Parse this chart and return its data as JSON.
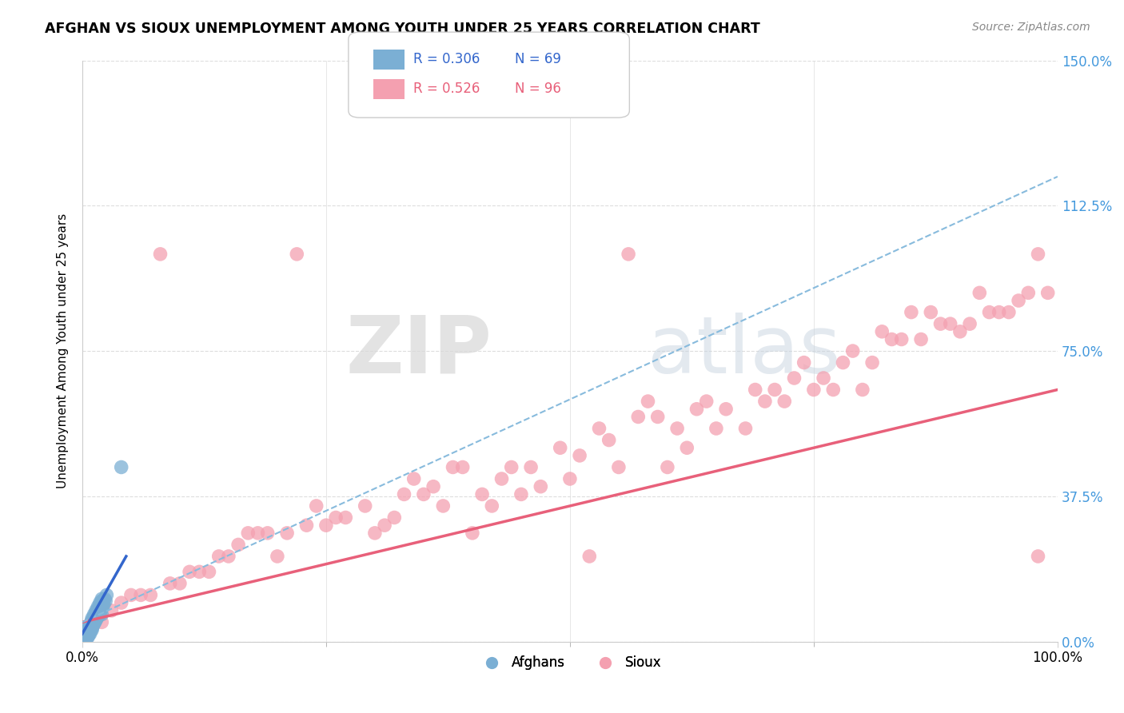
{
  "title": "AFGHAN VS SIOUX UNEMPLOYMENT AMONG YOUTH UNDER 25 YEARS CORRELATION CHART",
  "source": "Source: ZipAtlas.com",
  "ylabel": "Unemployment Among Youth under 25 years",
  "ytick_values": [
    0.0,
    37.5,
    75.0,
    112.5,
    150.0
  ],
  "xlim": [
    0,
    100
  ],
  "ylim": [
    0,
    150
  ],
  "afghan_color": "#7BAFD4",
  "sioux_color": "#F4A0B0",
  "afghan_line_color": "#3366CC",
  "sioux_line_color": "#E8607A",
  "dashed_line_color": "#88BBDD",
  "watermark_zip": "ZIP",
  "watermark_atlas": "atlas",
  "afghans_x": [
    0.2,
    0.3,
    0.4,
    0.5,
    0.6,
    0.7,
    0.8,
    0.9,
    1.0,
    1.1,
    1.2,
    1.3,
    1.4,
    1.5,
    1.6,
    1.7,
    1.8,
    1.9,
    2.0,
    2.1,
    2.2,
    2.3,
    2.4,
    2.5,
    0.2,
    0.3,
    0.4,
    0.5,
    0.6,
    0.7,
    0.8,
    0.9,
    1.0,
    1.1,
    1.2,
    1.3,
    1.4,
    1.5,
    1.6,
    1.7,
    1.8,
    1.9,
    2.0,
    2.1,
    0.3,
    0.4,
    0.5,
    0.6,
    0.7,
    0.8,
    0.9,
    1.0,
    1.1,
    1.2,
    1.3,
    1.4,
    1.5,
    1.6,
    1.7,
    1.8,
    1.9,
    2.0,
    0.2,
    0.4,
    0.6,
    0.8,
    1.0,
    4.0,
    2.0
  ],
  "afghans_y": [
    1.0,
    2.0,
    1.5,
    3.0,
    2.5,
    2.0,
    3.5,
    4.0,
    3.0,
    5.0,
    4.5,
    6.0,
    5.5,
    7.0,
    6.5,
    8.0,
    7.0,
    9.0,
    8.5,
    10.0,
    9.5,
    11.0,
    10.5,
    12.0,
    0.5,
    1.5,
    2.5,
    1.0,
    3.5,
    2.0,
    4.5,
    3.0,
    5.5,
    4.0,
    6.5,
    5.0,
    7.5,
    6.0,
    8.5,
    7.0,
    9.5,
    8.0,
    10.5,
    9.0,
    1.0,
    2.0,
    3.0,
    1.5,
    2.5,
    4.0,
    5.0,
    6.0,
    4.5,
    7.0,
    5.5,
    8.0,
    6.5,
    9.0,
    7.5,
    10.0,
    8.5,
    11.0,
    0.3,
    0.8,
    1.2,
    2.0,
    3.5,
    45.0,
    7.0
  ],
  "sioux_x": [
    3.0,
    5.0,
    8.0,
    10.0,
    12.0,
    15.0,
    18.0,
    20.0,
    22.0,
    25.0,
    27.0,
    30.0,
    32.0,
    35.0,
    37.0,
    40.0,
    42.0,
    45.0,
    47.0,
    50.0,
    52.0,
    55.0,
    58.0,
    60.0,
    62.0,
    65.0,
    68.0,
    70.0,
    72.0,
    75.0,
    77.0,
    80.0,
    82.0,
    85.0,
    87.0,
    90.0,
    92.0,
    95.0,
    97.0,
    98.0,
    2.0,
    6.0,
    11.0,
    16.0,
    21.0,
    26.0,
    31.0,
    36.0,
    41.0,
    46.0,
    51.0,
    56.0,
    61.0,
    66.0,
    71.0,
    76.0,
    81.0,
    86.0,
    91.0,
    96.0,
    4.0,
    9.0,
    14.0,
    19.0,
    24.0,
    29.0,
    34.0,
    39.0,
    44.0,
    49.0,
    54.0,
    59.0,
    64.0,
    69.0,
    74.0,
    79.0,
    84.0,
    89.0,
    94.0,
    99.0,
    7.0,
    13.0,
    23.0,
    33.0,
    43.0,
    53.0,
    63.0,
    73.0,
    83.0,
    93.0,
    17.0,
    38.0,
    57.0,
    78.0,
    88.0,
    98.0
  ],
  "sioux_y": [
    8.0,
    12.0,
    100.0,
    15.0,
    18.0,
    22.0,
    28.0,
    22.0,
    100.0,
    30.0,
    32.0,
    28.0,
    32.0,
    38.0,
    35.0,
    28.0,
    35.0,
    38.0,
    40.0,
    42.0,
    22.0,
    45.0,
    62.0,
    45.0,
    50.0,
    55.0,
    55.0,
    62.0,
    62.0,
    65.0,
    65.0,
    65.0,
    80.0,
    85.0,
    85.0,
    80.0,
    90.0,
    85.0,
    90.0,
    100.0,
    5.0,
    12.0,
    18.0,
    25.0,
    28.0,
    32.0,
    30.0,
    40.0,
    38.0,
    45.0,
    48.0,
    100.0,
    55.0,
    60.0,
    65.0,
    68.0,
    72.0,
    78.0,
    82.0,
    88.0,
    10.0,
    15.0,
    22.0,
    28.0,
    35.0,
    35.0,
    42.0,
    45.0,
    45.0,
    50.0,
    52.0,
    58.0,
    62.0,
    65.0,
    72.0,
    75.0,
    78.0,
    82.0,
    85.0,
    90.0,
    12.0,
    18.0,
    30.0,
    38.0,
    42.0,
    55.0,
    60.0,
    68.0,
    78.0,
    85.0,
    28.0,
    45.0,
    58.0,
    72.0,
    82.0,
    22.0
  ],
  "afghan_line_x0": 0,
  "afghan_line_x1": 4.5,
  "afghan_line_y0": 2.0,
  "afghan_line_y1": 22.0,
  "dashed_line_x0": 0,
  "dashed_line_x1": 100,
  "dashed_line_y0": 5.0,
  "dashed_line_y1": 120.0,
  "sioux_line_x0": 0,
  "sioux_line_x1": 100,
  "sioux_line_y0": 5.0,
  "sioux_line_y1": 65.0
}
